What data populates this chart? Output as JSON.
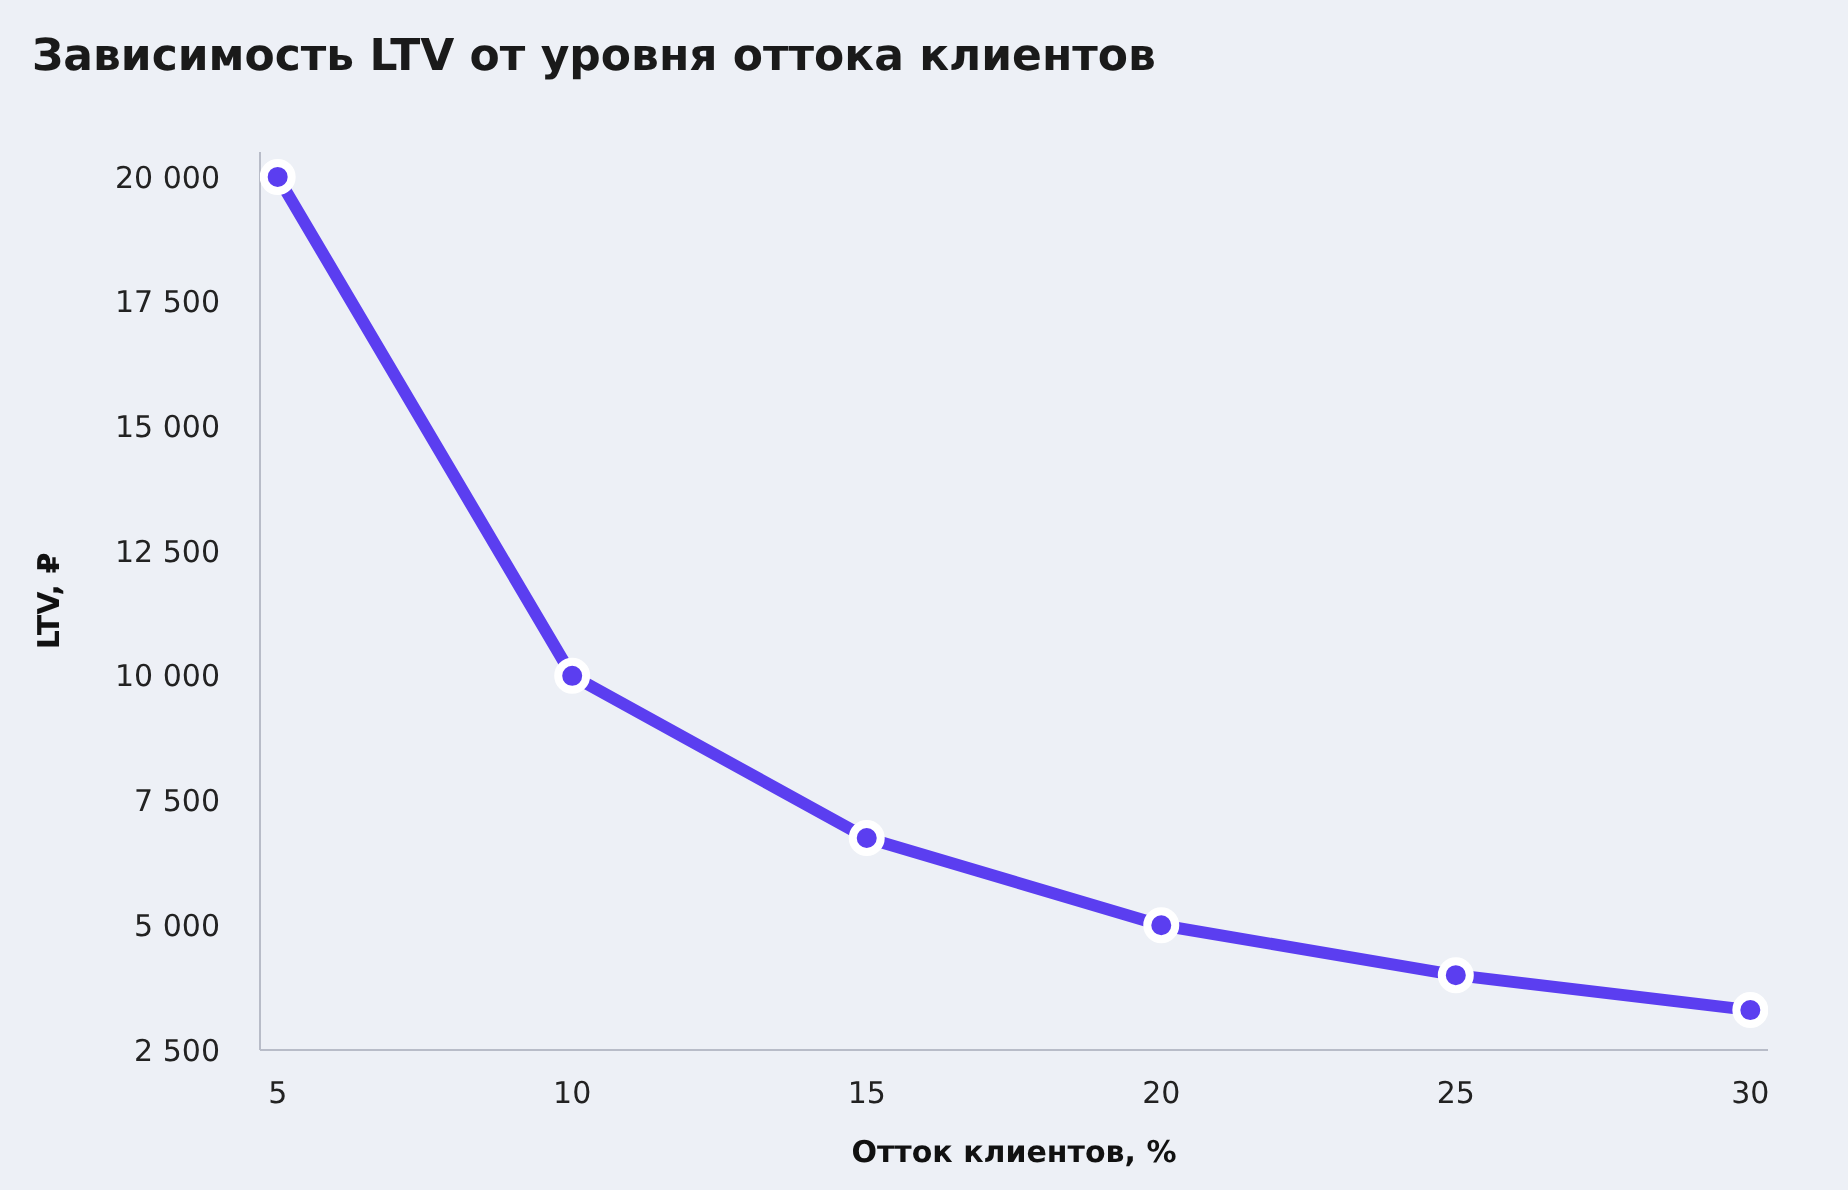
{
  "chart_data": {
    "type": "line",
    "title": "Зависимость LTV от уровня оттока клиентов",
    "xlabel": "Отток клиентов, %",
    "ylabel": "LTV, ₽",
    "x": [
      5,
      10,
      15,
      20,
      25,
      30
    ],
    "series": [
      {
        "color": "#5b3ef0",
        "values": [
          20000,
          10000,
          6750,
          5000,
          4000,
          3300
        ]
      }
    ],
    "xlim": [
      4.7,
      30.3
    ],
    "xticks": [
      5,
      10,
      15,
      20,
      25,
      30
    ],
    "ylim": [
      2500,
      20500
    ],
    "yticks": [
      {
        "value": 2500,
        "label": "2 500"
      },
      {
        "value": 5000,
        "label": "5 000"
      },
      {
        "value": 7500,
        "label": "7 500"
      },
      {
        "value": 10000,
        "label": "10 000"
      },
      {
        "value": 12500,
        "label": "12 500"
      },
      {
        "value": 15000,
        "label": "15 000"
      },
      {
        "value": 17500,
        "label": "17 500"
      },
      {
        "value": 20000,
        "label": "20 000"
      }
    ],
    "grid": false,
    "legend": false,
    "marker": "circle",
    "line_style": "solid"
  }
}
